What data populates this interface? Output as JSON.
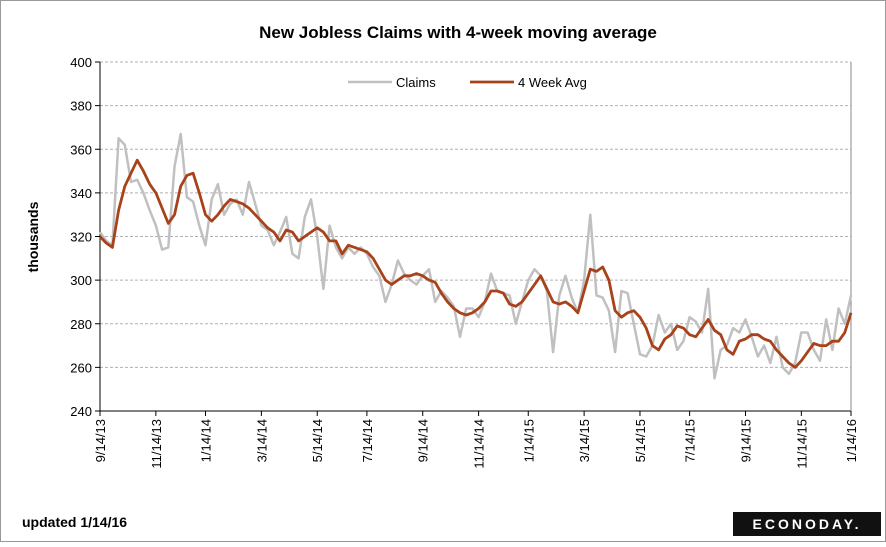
{
  "chart_data": {
    "type": "line",
    "title": "New Jobless  Claims with 4-week moving average",
    "y_label": "thousands",
    "footer": "updated 1/14/16",
    "logo": "ECONODAY.",
    "legend": "top",
    "grid": true,
    "ylim": [
      240,
      400
    ],
    "yticks": [
      240,
      260,
      280,
      300,
      320,
      340,
      360,
      380,
      400
    ],
    "categories": [
      "9/14/13",
      null,
      null,
      null,
      null,
      null,
      null,
      null,
      null,
      "11/14/13",
      null,
      null,
      null,
      null,
      null,
      null,
      null,
      "1/14/14",
      null,
      null,
      null,
      null,
      null,
      null,
      null,
      null,
      "3/14/14",
      null,
      null,
      null,
      null,
      null,
      null,
      null,
      null,
      "5/14/14",
      null,
      null,
      null,
      null,
      null,
      null,
      null,
      "7/14/14",
      null,
      null,
      null,
      null,
      null,
      null,
      null,
      null,
      "9/14/14",
      null,
      null,
      null,
      null,
      null,
      null,
      null,
      null,
      "11/14/14",
      null,
      null,
      null,
      null,
      null,
      null,
      null,
      "1/14/15",
      null,
      null,
      null,
      null,
      null,
      null,
      null,
      null,
      "3/14/15",
      null,
      null,
      null,
      null,
      null,
      null,
      null,
      null,
      "5/14/15",
      null,
      null,
      null,
      null,
      null,
      null,
      null,
      "7/14/15",
      null,
      null,
      null,
      null,
      null,
      null,
      null,
      null,
      "9/14/15",
      null,
      null,
      null,
      null,
      null,
      null,
      null,
      null,
      "11/14/15",
      null,
      null,
      null,
      null,
      null,
      null,
      null,
      "1/14/16"
    ],
    "series": [
      {
        "name": "Claims",
        "color": "#c0c0c0",
        "width": 2.5,
        "values": [
          322,
          318,
          316,
          365,
          362,
          345,
          346,
          340,
          332,
          325,
          314,
          315,
          352,
          367,
          338,
          336,
          325,
          316,
          337,
          344,
          330,
          335,
          337,
          330,
          345,
          335,
          325,
          323,
          316,
          322,
          329,
          312,
          310,
          329,
          337,
          320,
          296,
          325,
          315,
          310,
          315,
          312,
          315,
          312,
          306,
          302,
          290,
          298,
          309,
          303,
          300,
          298,
          302,
          305,
          290,
          295,
          292,
          288,
          274,
          287,
          287,
          283,
          290,
          303,
          295,
          294,
          293,
          280,
          290,
          300,
          305,
          302,
          295,
          267,
          293,
          302,
          292,
          285,
          300,
          330,
          293,
          292,
          286,
          267,
          295,
          294,
          280,
          266,
          265,
          270,
          284,
          276,
          280,
          268,
          272,
          283,
          281,
          276,
          296,
          255,
          268,
          270,
          278,
          276,
          282,
          274,
          265,
          270,
          262,
          274,
          260,
          257,
          262,
          276,
          276,
          268,
          263,
          282,
          268,
          287,
          280,
          293
        ]
      },
      {
        "name": "4 Week Avg",
        "color": "#a8421b",
        "width": 2.8,
        "values": [
          320,
          317,
          315,
          332,
          343,
          349,
          355,
          350,
          344,
          340,
          333,
          326,
          330,
          343,
          348,
          349,
          340,
          330,
          327,
          330,
          334,
          337,
          336,
          335,
          333,
          330,
          327,
          324,
          322,
          318,
          323,
          322,
          318,
          320,
          322,
          324,
          322,
          318,
          318,
          312,
          316,
          315,
          314,
          313,
          310,
          305,
          300,
          298,
          300,
          302,
          302,
          303,
          302,
          300,
          299,
          294,
          290,
          287,
          285,
          284,
          285,
          287,
          290,
          295,
          295,
          294,
          289,
          288,
          290,
          294,
          298,
          302,
          296,
          290,
          289,
          290,
          288,
          285,
          295,
          305,
          304,
          306,
          300,
          286,
          283,
          285,
          286,
          283,
          278,
          270,
          268,
          273,
          275,
          279,
          278,
          275,
          274,
          278,
          282,
          277,
          275,
          268,
          266,
          272,
          273,
          275,
          275,
          273,
          272,
          268,
          265,
          262,
          260,
          263,
          267,
          271,
          270,
          270,
          272,
          272,
          276,
          285
        ]
      }
    ]
  }
}
